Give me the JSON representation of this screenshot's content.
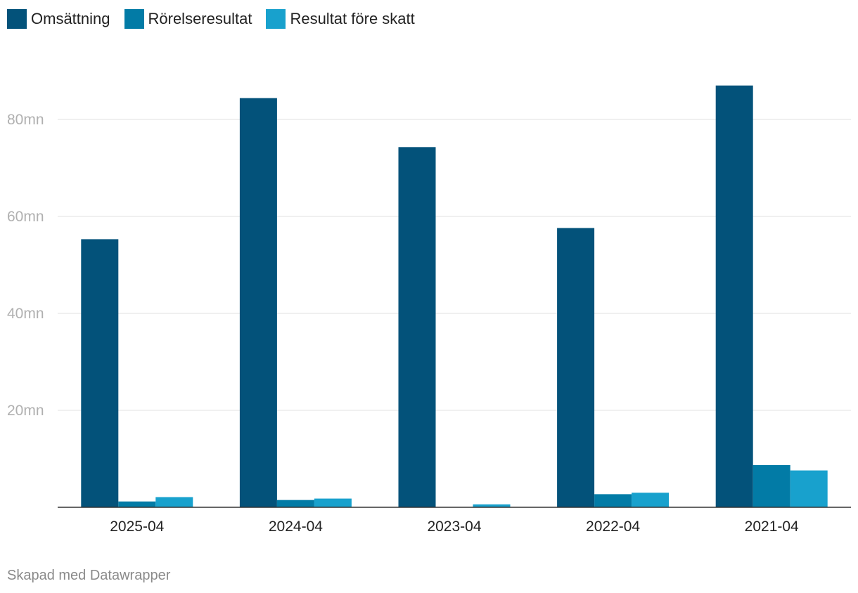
{
  "legend": {
    "items": [
      {
        "label": "Omsättning",
        "color": "#03527a"
      },
      {
        "label": "Rörelseresultat",
        "color": "#027ba6"
      },
      {
        "label": "Resultat före skatt",
        "color": "#18a1cd"
      }
    ]
  },
  "footer": {
    "text": "Skapad med Datawrapper"
  },
  "chart_data": {
    "type": "bar",
    "categories": [
      "2025-04",
      "2024-04",
      "2023-04",
      "2022-04",
      "2021-04"
    ],
    "series": [
      {
        "name": "Omsättning",
        "color": "#03527a",
        "values": [
          55.3,
          84.4,
          74.3,
          57.6,
          87.0
        ]
      },
      {
        "name": "Rörelseresultat",
        "color": "#027ba6",
        "values": [
          1.2,
          1.5,
          0.0,
          2.7,
          8.7
        ]
      },
      {
        "name": "Resultat före skatt",
        "color": "#18a1cd",
        "values": [
          2.1,
          1.8,
          0.6,
          3.0,
          7.6
        ]
      }
    ],
    "yticks": [
      20,
      40,
      60,
      80
    ],
    "ytick_labels": [
      "20mn",
      "40mn",
      "60mn",
      "80mn"
    ],
    "ylim": [
      0,
      90
    ],
    "grid": true,
    "legend_position": "top-left"
  }
}
